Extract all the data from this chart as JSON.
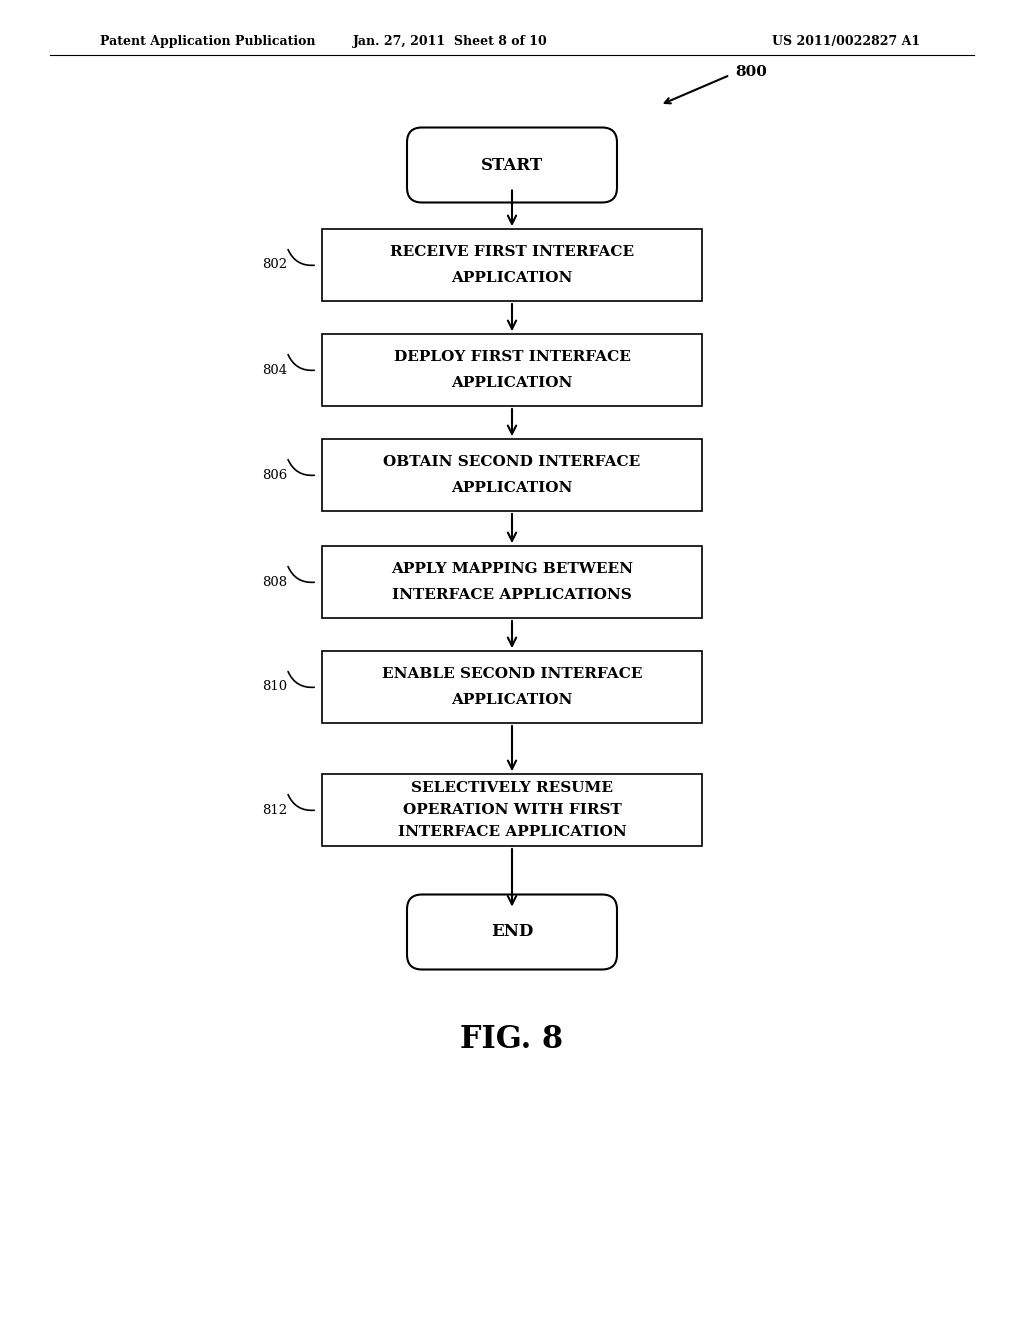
{
  "bg_color": "#ffffff",
  "header_left": "Patent Application Publication",
  "header_mid": "Jan. 27, 2011  Sheet 8 of 10",
  "header_right": "US 2011/0022827 A1",
  "fig_label": "FIG. 8",
  "diagram_number": "800",
  "start_label": "START",
  "end_label": "END",
  "boxes": [
    {
      "id": "802",
      "lines": [
        "RECEIVE FIRST INTERFACE",
        "APPLICATION"
      ]
    },
    {
      "id": "804",
      "lines": [
        "DEPLOY FIRST INTERFACE",
        "APPLICATION"
      ]
    },
    {
      "id": "806",
      "lines": [
        "OBTAIN SECOND INTERFACE",
        "APPLICATION"
      ]
    },
    {
      "id": "808",
      "lines": [
        "APPLY MAPPING BETWEEN",
        "INTERFACE APPLICATIONS"
      ]
    },
    {
      "id": "810",
      "lines": [
        "ENABLE SECOND INTERFACE",
        "APPLICATION"
      ]
    },
    {
      "id": "812",
      "lines": [
        "SELECTIVELY RESUME",
        "OPERATION WITH FIRST",
        "INTERFACE APPLICATION"
      ]
    }
  ]
}
